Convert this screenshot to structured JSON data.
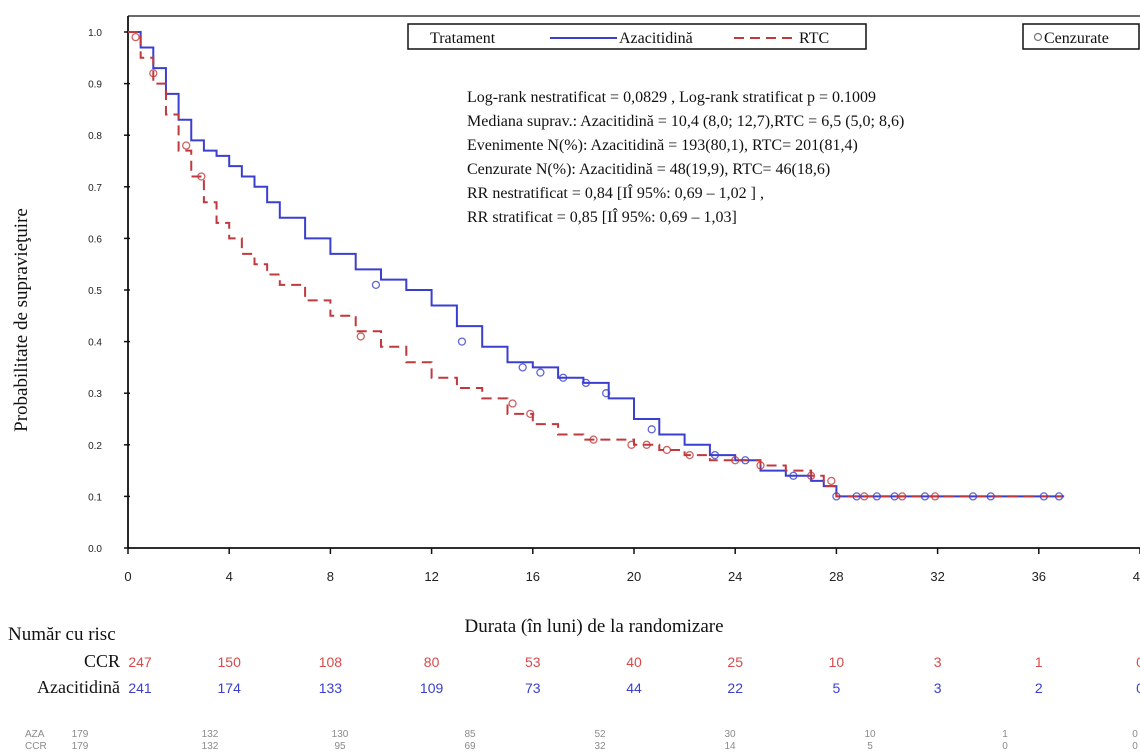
{
  "chart_data": {
    "type": "line",
    "ylabel": "Probabilitate de supravieţuire",
    "xlabel": "Durata (în luni) de la randomizare",
    "xlim": [
      0,
      40
    ],
    "ylim": [
      0,
      1.0
    ],
    "x_ticks": [
      0,
      4,
      8,
      12,
      16,
      20,
      24,
      28,
      32,
      36,
      40
    ],
    "y_ticks": [
      "0.0",
      "0.1",
      "0.2",
      "0.3",
      "0.4",
      "0.5",
      "0.6",
      "0.7",
      "0.8",
      "0.9",
      "1.0"
    ],
    "legend": {
      "title": "Tratament",
      "items": [
        {
          "label": "Azacitidină",
          "color": "#3b3fd0",
          "style": "solid"
        },
        {
          "label": "RTC",
          "color": "#c0393d",
          "style": "dashed"
        }
      ],
      "censor_label": "Cenzurate"
    },
    "annotations": [
      "Log-rank nestratificat = 0,0829 , Log-rank stratificat p = 0.1009",
      "Mediana suprav.: Azacitidină = 10,4 (8,0; 12,7),RTC  = 6,5 (5,0; 8,6)",
      "Evenimente N(%): Azacitidină = 193(80,1),  RTC= 201(81,4)",
      "Cenzurate N(%): Azacitidină = 48(19,9),  RTC= 46(18,6)",
      "RR nestratificat = 0,84 [IÎ 95%: 0,69 – 1,02 ] ,",
      "RR stratificat = 0,85 [IÎ 95%: 0,69 – 1,03]"
    ],
    "series": [
      {
        "name": "Azacitidină",
        "color": "#3b3fd0",
        "x": [
          0,
          0.5,
          1,
          1.5,
          2,
          2.5,
          3,
          3.5,
          4,
          4.5,
          5,
          5.5,
          6,
          7,
          8,
          9,
          10,
          11,
          12,
          13,
          14,
          15,
          16,
          17,
          18,
          19,
          20,
          21,
          22,
          23,
          24,
          25,
          26,
          27,
          27.5,
          28,
          30,
          32,
          34,
          36,
          37
        ],
        "y": [
          1.0,
          0.97,
          0.93,
          0.88,
          0.83,
          0.79,
          0.77,
          0.76,
          0.74,
          0.72,
          0.7,
          0.67,
          0.64,
          0.6,
          0.57,
          0.54,
          0.52,
          0.5,
          0.47,
          0.43,
          0.39,
          0.36,
          0.35,
          0.33,
          0.32,
          0.29,
          0.25,
          0.22,
          0.2,
          0.18,
          0.17,
          0.15,
          0.14,
          0.13,
          0.12,
          0.1,
          0.1,
          0.1,
          0.1,
          0.1,
          0.1
        ]
      },
      {
        "name": "RTC",
        "color": "#c0393d",
        "x": [
          0,
          0.5,
          1,
          1.5,
          2,
          2.5,
          3,
          3.5,
          4,
          4.5,
          5,
          5.5,
          6,
          7,
          8,
          9,
          10,
          11,
          12,
          13,
          14,
          15,
          16,
          17,
          18,
          19,
          20,
          21,
          22,
          23,
          24,
          25,
          26,
          27,
          27.5,
          28,
          30,
          32,
          34,
          36,
          37
        ],
        "y": [
          1.0,
          0.95,
          0.9,
          0.84,
          0.77,
          0.72,
          0.67,
          0.63,
          0.6,
          0.57,
          0.55,
          0.53,
          0.51,
          0.48,
          0.45,
          0.42,
          0.39,
          0.36,
          0.33,
          0.31,
          0.29,
          0.26,
          0.24,
          0.22,
          0.21,
          0.21,
          0.2,
          0.19,
          0.18,
          0.17,
          0.17,
          0.16,
          0.15,
          0.14,
          0.12,
          0.1,
          0.1,
          0.1,
          0.1,
          0.1,
          0.1
        ]
      }
    ],
    "censored": {
      "Azacitidină": [
        [
          9.8,
          0.51
        ],
        [
          13.2,
          0.4
        ],
        [
          15.6,
          0.35
        ],
        [
          16.3,
          0.34
        ],
        [
          17.2,
          0.33
        ],
        [
          18.1,
          0.32
        ],
        [
          18.9,
          0.3
        ],
        [
          20.7,
          0.23
        ],
        [
          23.2,
          0.18
        ],
        [
          24.4,
          0.17
        ],
        [
          26.3,
          0.14
        ],
        [
          28.0,
          0.1
        ],
        [
          28.8,
          0.1
        ],
        [
          29.6,
          0.1
        ],
        [
          30.3,
          0.1
        ],
        [
          31.5,
          0.1
        ],
        [
          33.4,
          0.1
        ],
        [
          34.1,
          0.1
        ],
        [
          36.2,
          0.1
        ],
        [
          36.8,
          0.1
        ]
      ],
      "RTC": [
        [
          0.3,
          0.99
        ],
        [
          1.0,
          0.92
        ],
        [
          2.3,
          0.78
        ],
        [
          2.9,
          0.72
        ],
        [
          9.2,
          0.41
        ],
        [
          15.2,
          0.28
        ],
        [
          15.9,
          0.26
        ],
        [
          18.4,
          0.21
        ],
        [
          19.9,
          0.2
        ],
        [
          20.5,
          0.2
        ],
        [
          21.3,
          0.19
        ],
        [
          22.2,
          0.18
        ],
        [
          24.0,
          0.17
        ],
        [
          25.0,
          0.16
        ],
        [
          27.0,
          0.14
        ],
        [
          27.8,
          0.13
        ],
        [
          29.1,
          0.1
        ],
        [
          30.6,
          0.1
        ],
        [
          31.9,
          0.1
        ]
      ]
    },
    "risk_table": {
      "title": "Număr cu risc",
      "rows": [
        {
          "label": "CCR",
          "color": "#d94a4a",
          "values": [
            "247",
            "150",
            "108",
            "80",
            "53",
            "40",
            "25",
            "10",
            "3",
            "1",
            "0"
          ]
        },
        {
          "label": "Azacitidină",
          "color": "#3a3fcc",
          "values": [
            "241",
            "174",
            "133",
            "109",
            "73",
            "44",
            "22",
            "5",
            "3",
            "2",
            "0"
          ]
        }
      ]
    },
    "faded_rows": {
      "row1_label": "AZA",
      "row1_values": [
        "179",
        "132",
        "130",
        "85",
        "52",
        "30",
        "10",
        "1",
        "0"
      ],
      "row2_label": "CCR",
      "row2_values": [
        "179",
        "132",
        "95",
        "69",
        "32",
        "14",
        "5",
        "0",
        "0"
      ]
    }
  }
}
